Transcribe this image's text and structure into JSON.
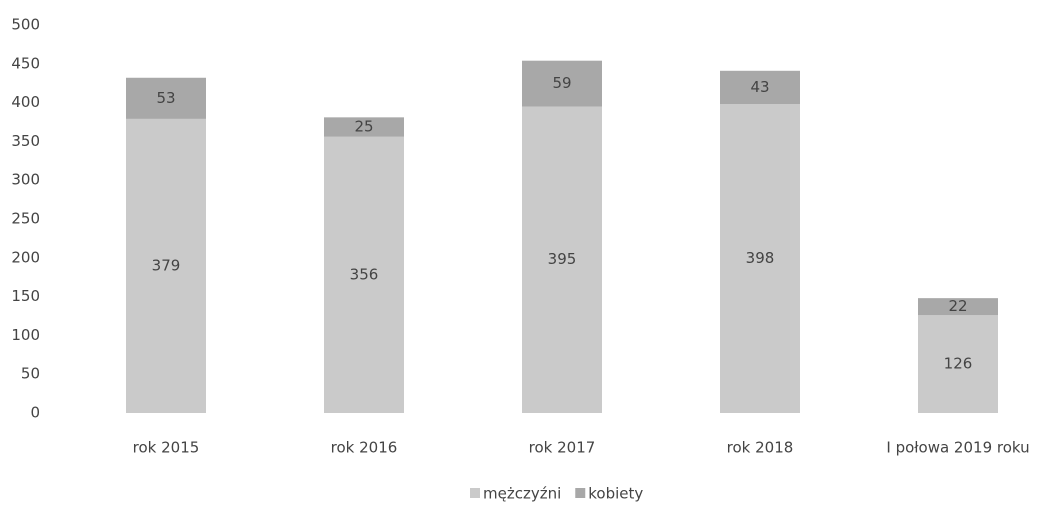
{
  "chart_data": {
    "type": "stacked_bar",
    "categories": [
      "rok 2015",
      "rok 2016",
      "rok 2017",
      "rok 2018",
      "I połowa 2019 roku"
    ],
    "series": [
      {
        "name": "mężczyźni",
        "color": "#cacaca",
        "values": [
          379,
          356,
          395,
          398,
          126
        ]
      },
      {
        "name": "kobiety",
        "color": "#a8a8a8",
        "values": [
          53,
          25,
          59,
          43,
          22
        ]
      }
    ],
    "ylim": [
      0,
      500
    ],
    "yticks": [
      0,
      50,
      100,
      150,
      200,
      250,
      300,
      350,
      400,
      450,
      500
    ],
    "grid": false,
    "legend": "bottom"
  }
}
